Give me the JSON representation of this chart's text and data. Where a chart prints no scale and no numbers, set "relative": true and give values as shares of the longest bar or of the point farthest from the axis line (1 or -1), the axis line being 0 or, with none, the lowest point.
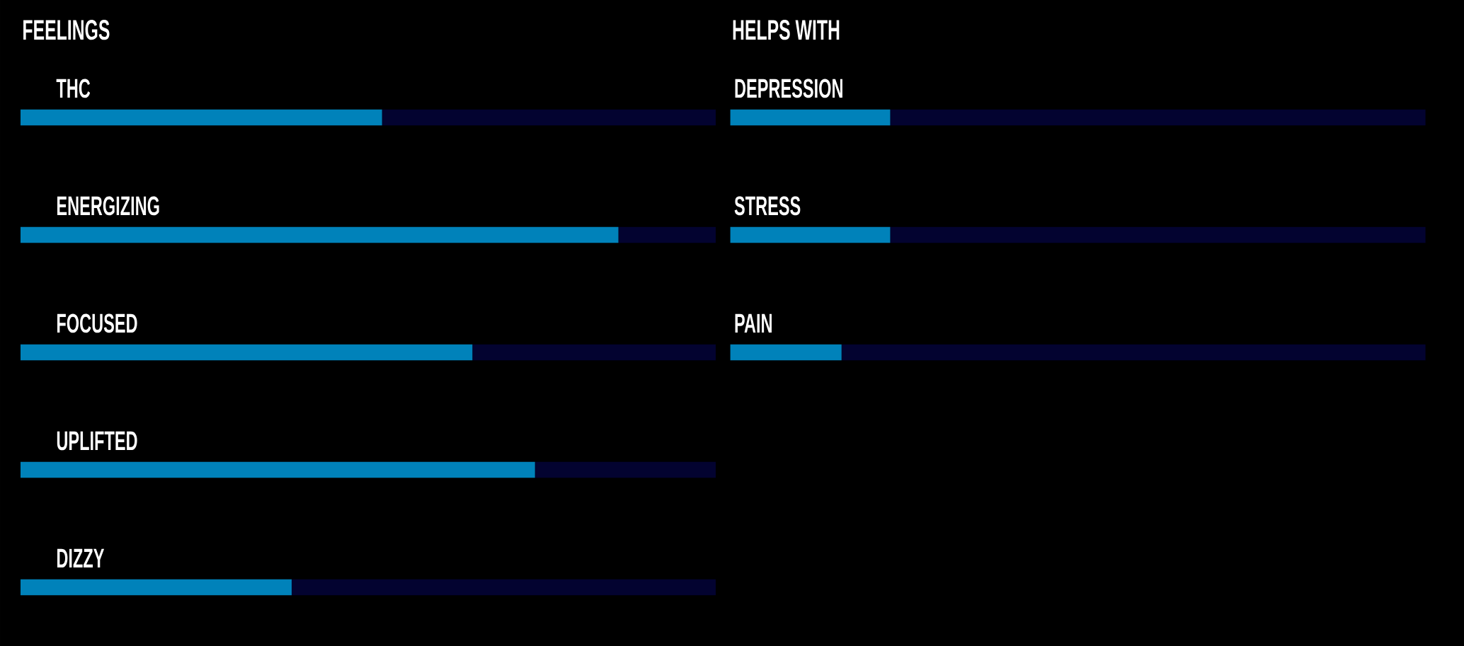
{
  "chart_data": [
    {
      "type": "bar",
      "title": "FEELINGS",
      "orientation": "horizontal",
      "stacked": true,
      "relative": true,
      "categories": [
        "THC",
        "ENERGIZING",
        "FOCUSED",
        "UPLIFTED",
        "DIZZY"
      ],
      "series": [
        {
          "color": "#0082ba",
          "values": [
            0.52,
            0.86,
            0.65,
            0.74,
            0.39
          ]
        },
        {
          "color": "#030330",
          "values": [
            0.48,
            0.14,
            0.35,
            0.26,
            0.61
          ]
        }
      ]
    },
    {
      "type": "bar",
      "title": "HELPS WITH",
      "orientation": "horizontal",
      "stacked": true,
      "relative": true,
      "categories": [
        "DEPRESSION",
        "STRESS",
        "PAIN"
      ],
      "series": [
        {
          "color": "#0082ba",
          "values": [
            0.23,
            0.23,
            0.16
          ]
        },
        {
          "color": "#030330",
          "values": [
            0.77,
            0.77,
            0.84
          ]
        }
      ]
    }
  ]
}
